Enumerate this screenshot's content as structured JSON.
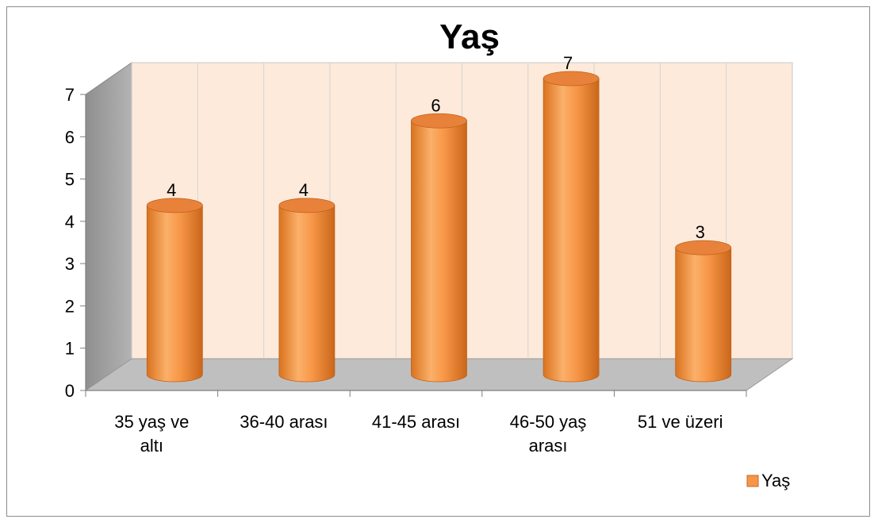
{
  "chart_data": {
    "type": "bar",
    "title": "Yaş",
    "categories": [
      "35 yaş ve altı",
      "36-40 arası",
      "41-45 arası",
      "46-50 yaş arası",
      "51 ve üzeri"
    ],
    "category_lines": [
      [
        "35 yaş ve",
        "altı"
      ],
      [
        "36-40 arası"
      ],
      [
        "41-45 arası"
      ],
      [
        "46-50 yaş",
        "arası"
      ],
      [
        "51 ve üzeri"
      ]
    ],
    "series": [
      {
        "name": "Yaş",
        "values": [
          4,
          4,
          6,
          7,
          3
        ],
        "color": "#F79646"
      }
    ],
    "ylim": [
      0,
      7
    ],
    "yticks": [
      "0",
      "1",
      "2",
      "3",
      "4",
      "5",
      "6",
      "7"
    ],
    "grid": true,
    "data_labels": true,
    "legend_position": "bottom-right",
    "style": "3d-cylinder",
    "colors": {
      "back_wall": "#FDEADA",
      "side_wall": "#A6A6A6",
      "floor": "#BFBFBF",
      "bar": "#F79646"
    }
  }
}
